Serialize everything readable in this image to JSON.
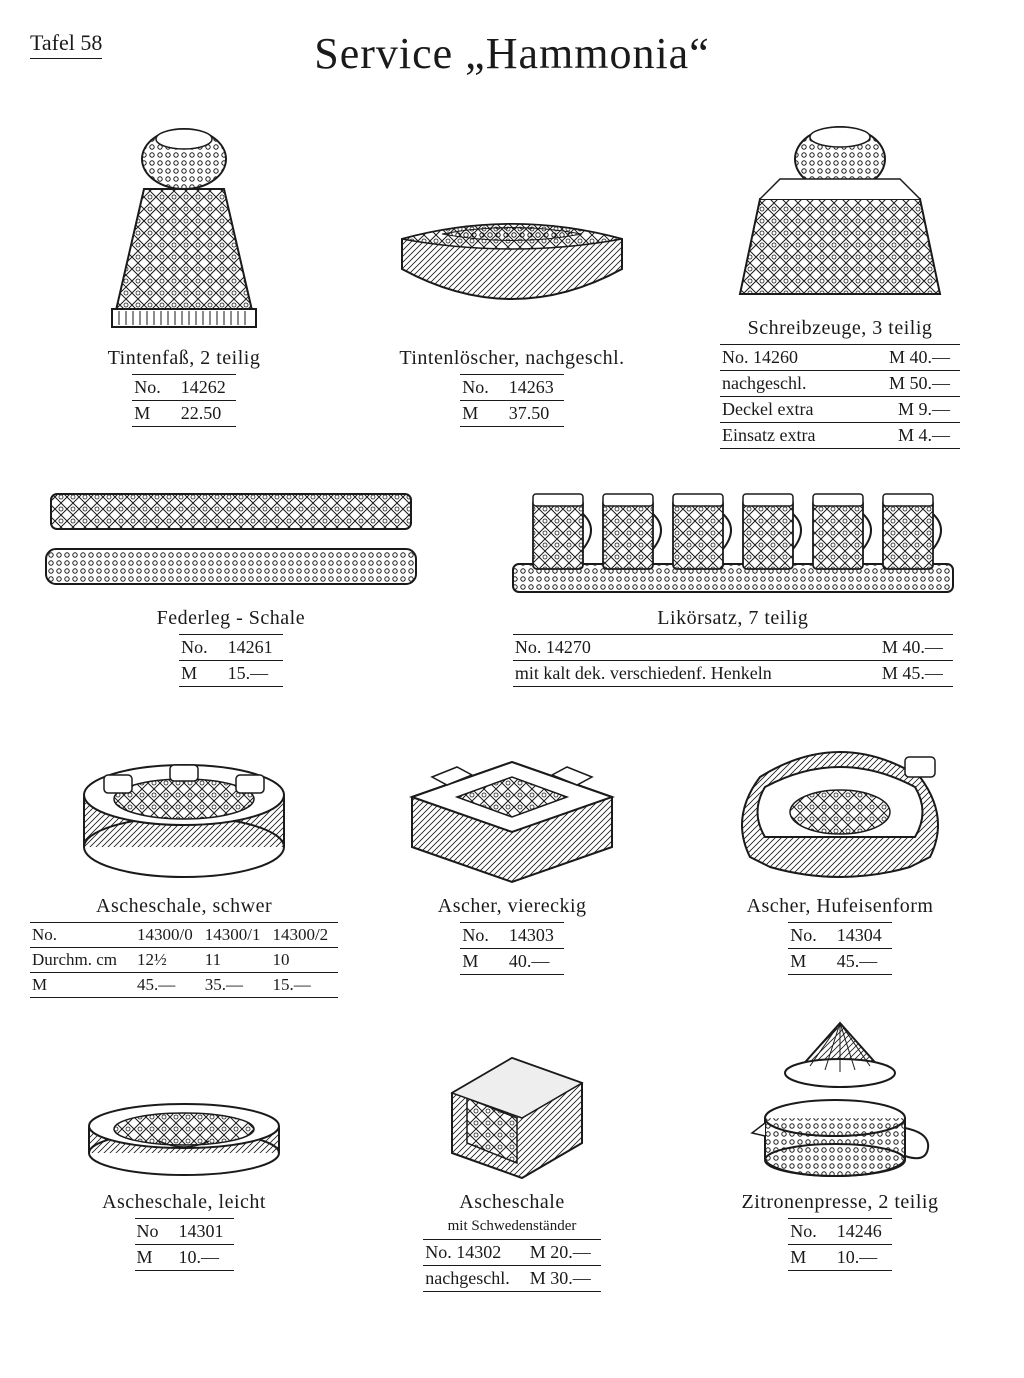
{
  "page_label": "Tafel 58",
  "title": "Service „Hammonia“",
  "colors": {
    "ink": "#1a1a1a",
    "paper": "#ffffff"
  },
  "items": {
    "tintenfass": {
      "caption": "Tintenfaß,  2 teilig",
      "rows": [
        [
          "No.",
          "14262"
        ],
        [
          "M",
          "22.50"
        ]
      ]
    },
    "tintenloescher": {
      "caption": "Tintenlöscher,  nachgeschl.",
      "rows": [
        [
          "No.",
          "14263"
        ],
        [
          "M",
          "37.50"
        ]
      ]
    },
    "schreibzeuge": {
      "caption": "Schreibzeuge,  3 teilig",
      "rows": [
        [
          "No. 14260",
          "M 40.—"
        ],
        [
          "nachgeschl.",
          "M 50.—"
        ],
        [
          "Deckel extra",
          "M   9.—"
        ],
        [
          "Einsatz extra",
          "M   4.—"
        ]
      ]
    },
    "federleg": {
      "caption": "Federleg - Schale",
      "rows": [
        [
          "No.",
          "14261"
        ],
        [
          "M",
          "15.—"
        ]
      ]
    },
    "likoersatz": {
      "caption": "Likörsatz,  7 teilig",
      "rows": [
        [
          "No. 14270",
          "M 40.—"
        ],
        [
          "mit kalt dek. verschiedenf. Henkeln",
          "M 45.—"
        ]
      ]
    },
    "ascheschale_schwer": {
      "caption": "Ascheschale,  schwer",
      "header": [
        "No.",
        "14300/0",
        "14300/1",
        "14300/2"
      ],
      "rows": [
        [
          "Durchm. cm",
          "12½",
          "11",
          "10"
        ],
        [
          "M",
          "45.—",
          "35.—",
          "15.—"
        ]
      ]
    },
    "ascher_viereckig": {
      "caption": "Ascher,  viereckig",
      "rows": [
        [
          "No.",
          "14303"
        ],
        [
          "M",
          "40.—"
        ]
      ]
    },
    "ascher_hufeisen": {
      "caption": "Ascher,  Hufeisenform",
      "rows": [
        [
          "No.",
          "14304"
        ],
        [
          "M",
          "45.—"
        ]
      ]
    },
    "ascheschale_leicht": {
      "caption": "Ascheschale,  leicht",
      "rows": [
        [
          "No",
          "14301"
        ],
        [
          "M",
          "10.—"
        ]
      ]
    },
    "ascheschale_schweden": {
      "caption": "Ascheschale",
      "subcaption": "mit Schwedenständer",
      "rows": [
        [
          "No. 14302",
          "M 20.—"
        ],
        [
          "nachgeschl.",
          "M 30.—"
        ]
      ]
    },
    "zitronenpresse": {
      "caption": "Zitronenpresse,  2 teilig",
      "rows": [
        [
          "No.",
          "14246"
        ],
        [
          "M",
          "10.—"
        ]
      ]
    }
  }
}
